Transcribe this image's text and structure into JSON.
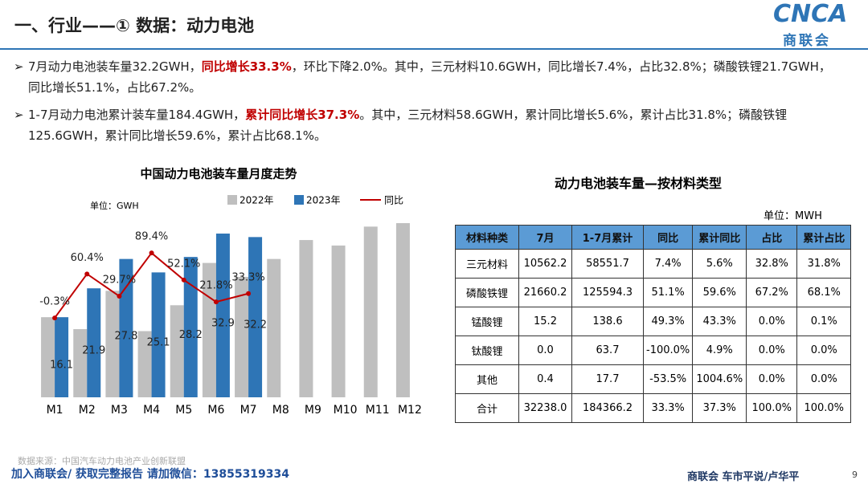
{
  "header": {
    "title": "一、行业——① 数据：动力电池",
    "logo": "CNCA",
    "logo_sub": "商联会"
  },
  "bullets": [
    [
      {
        "text": "7月动力电池装车量32.2GWH，"
      },
      {
        "text": "同比增长33.3%",
        "highlight": true
      },
      {
        "text": "，环比下降2.0%。其中，三元材料10.6GWH，同比增长7.4%，占比32.8%；磷酸铁锂21.7GWH，同比增长51.1%，占比67.2%。"
      }
    ],
    [
      {
        "text": "1-7月动力电池累计装车量184.4GWH，"
      },
      {
        "text": "累计同比增长37.3%",
        "highlight": true
      },
      {
        "text": "。其中，三元材料58.6GWH，累计同比增长5.6%，累计占比31.8%；磷酸铁锂125.6GWH，累计同比增长59.6%，累计占比68.1%。"
      }
    ]
  ],
  "chart_data": {
    "type": "bar",
    "title": "中国动力电池装车量月度走势",
    "unit": "单位：GWH",
    "categories": [
      "M1",
      "M2",
      "M3",
      "M4",
      "M5",
      "M6",
      "M7",
      "M8",
      "M9",
      "M10",
      "M11",
      "M12"
    ],
    "ylim": [
      0,
      40
    ],
    "y2lim": [
      -110,
      165
    ],
    "series": [
      {
        "name": "2022年",
        "type": "bar",
        "color": "#bfbfbf",
        "values": [
          16.1,
          13.7,
          21.4,
          13.3,
          18.5,
          27.0,
          24.2,
          27.8,
          31.6,
          30.5,
          34.3,
          35.0
        ]
      },
      {
        "name": "2023年",
        "type": "bar",
        "color": "#2e75b6",
        "values": [
          16.1,
          21.9,
          27.8,
          25.1,
          28.2,
          32.9,
          32.2,
          null,
          null,
          null,
          null,
          null
        ]
      },
      {
        "name": "同比",
        "type": "line",
        "axis": "y2",
        "color": "#c00000",
        "values": [
          -0.3,
          60.4,
          29.7,
          89.4,
          52.1,
          21.8,
          33.3,
          null,
          null,
          null,
          null,
          null
        ],
        "value_labels": [
          "-0.3%",
          "60.4%",
          "29.7%",
          "89.4%",
          "52.1%",
          "21.8%",
          "33.3%",
          null,
          null,
          null,
          null,
          null
        ]
      }
    ]
  },
  "table": {
    "title": "动力电池装车量—按材料类型",
    "unit": "单位：MWH",
    "header": [
      "材料种类",
      "7月",
      "1-7月累计",
      "同比",
      "累计同比",
      "占比",
      "累计占比"
    ],
    "rows": [
      [
        "三元材料",
        "10562.2",
        "58551.7",
        "7.4%",
        "5.6%",
        "32.8%",
        "31.8%"
      ],
      [
        "磷酸铁锂",
        "21660.2",
        "125594.3",
        "51.1%",
        "59.6%",
        "67.2%",
        "68.1%"
      ],
      [
        "锰酸锂",
        "15.2",
        "138.6",
        "49.3%",
        "43.3%",
        "0.0%",
        "0.1%"
      ],
      [
        "钛酸锂",
        "0.0",
        "63.7",
        "-100.0%",
        "4.9%",
        "0.0%",
        "0.0%"
      ],
      [
        "其他",
        "0.4",
        "17.7",
        "-53.5%",
        "1004.6%",
        "0.0%",
        "0.0%"
      ],
      [
        "合计",
        "32238.0",
        "184366.2",
        "33.3%",
        "37.3%",
        "100.0%",
        "100.0%"
      ]
    ]
  },
  "footer": {
    "source": "数据来源：中国汽车动力电池产业创新联盟",
    "contact": "加入商联会/ 获取完整报告  请加微信：13855319334",
    "brand": "商联会   车市平说/卢华平",
    "page": "9"
  }
}
